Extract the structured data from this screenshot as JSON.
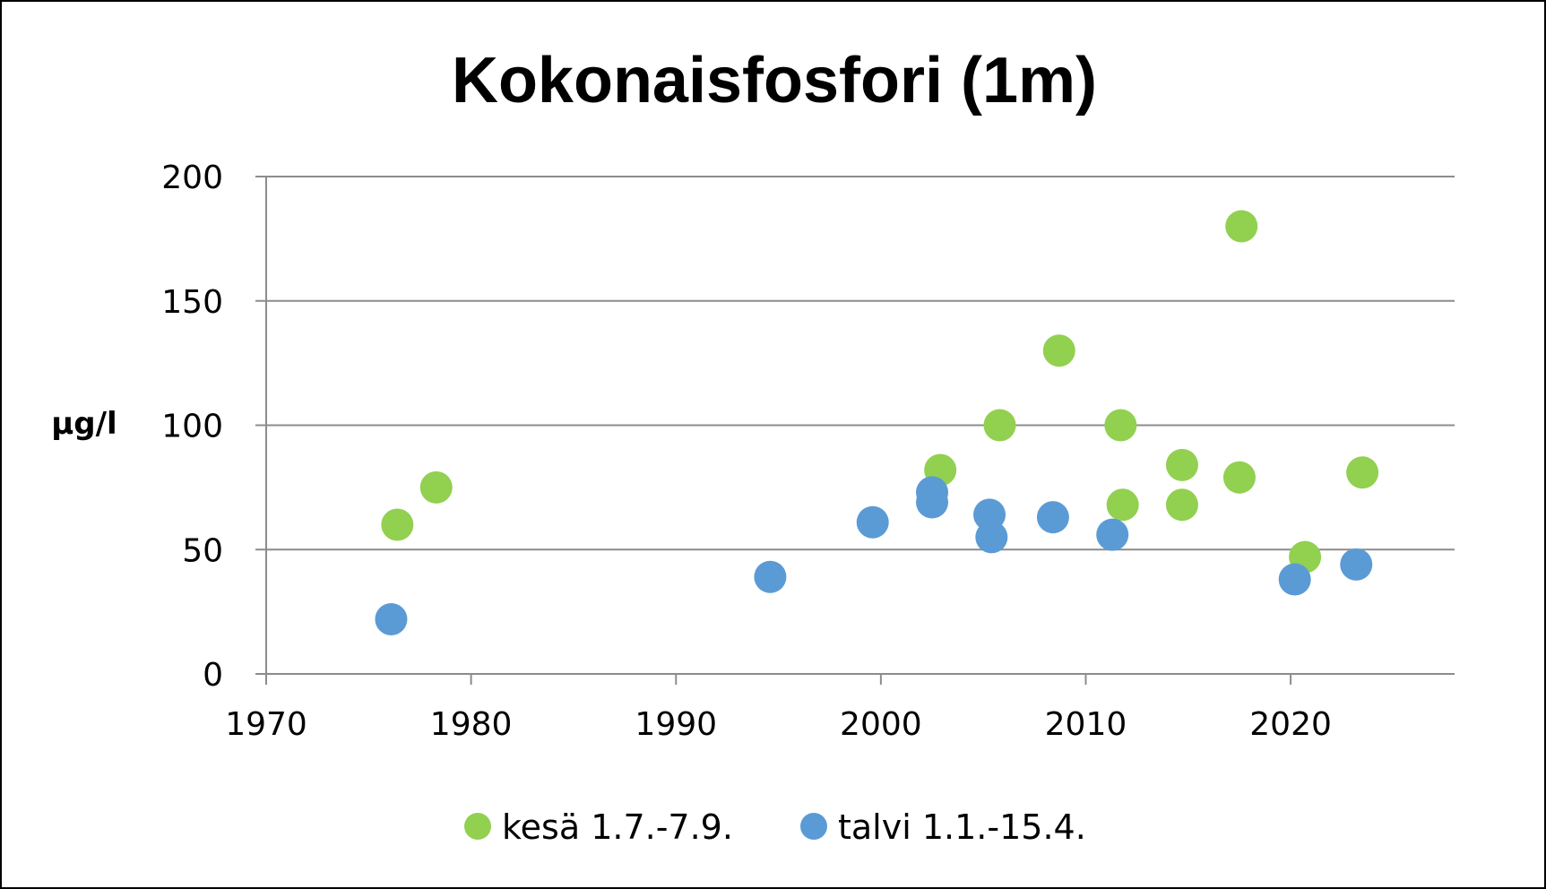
{
  "chart_data": {
    "type": "scatter",
    "title": "Kokonaisfosfori (1m)",
    "xlabel": "",
    "ylabel": "µg/l",
    "xlim": [
      1970,
      2028
    ],
    "ylim": [
      0,
      200
    ],
    "x_ticks": [
      1970,
      1980,
      1990,
      2000,
      2010,
      2020
    ],
    "y_ticks": [
      0,
      50,
      100,
      150,
      200
    ],
    "grid": "horizontal",
    "legend_position": "bottom",
    "series": [
      {
        "name": "kesä 1.7.-7.9.",
        "color": "#92d050",
        "points": [
          {
            "x": 1976.4,
            "y": 60
          },
          {
            "x": 1978.3,
            "y": 75
          },
          {
            "x": 2002.9,
            "y": 82
          },
          {
            "x": 2005.8,
            "y": 100
          },
          {
            "x": 2008.7,
            "y": 130
          },
          {
            "x": 2011.7,
            "y": 100
          },
          {
            "x": 2011.8,
            "y": 68
          },
          {
            "x": 2014.7,
            "y": 84
          },
          {
            "x": 2014.7,
            "y": 68
          },
          {
            "x": 2017.6,
            "y": 180
          },
          {
            "x": 2017.5,
            "y": 79
          },
          {
            "x": 2020.7,
            "y": 47
          },
          {
            "x": 2023.5,
            "y": 81
          }
        ]
      },
      {
        "name": "talvi 1.1.-15.4.",
        "color": "#5b9bd5",
        "points": [
          {
            "x": 1976.1,
            "y": 22
          },
          {
            "x": 1994.6,
            "y": 39
          },
          {
            "x": 1999.6,
            "y": 61
          },
          {
            "x": 2002.5,
            "y": 73
          },
          {
            "x": 2002.5,
            "y": 69
          },
          {
            "x": 2005.3,
            "y": 64
          },
          {
            "x": 2005.4,
            "y": 55
          },
          {
            "x": 2008.4,
            "y": 63
          },
          {
            "x": 2011.3,
            "y": 56
          },
          {
            "x": 2020.2,
            "y": 38
          },
          {
            "x": 2023.2,
            "y": 44
          }
        ]
      }
    ]
  }
}
